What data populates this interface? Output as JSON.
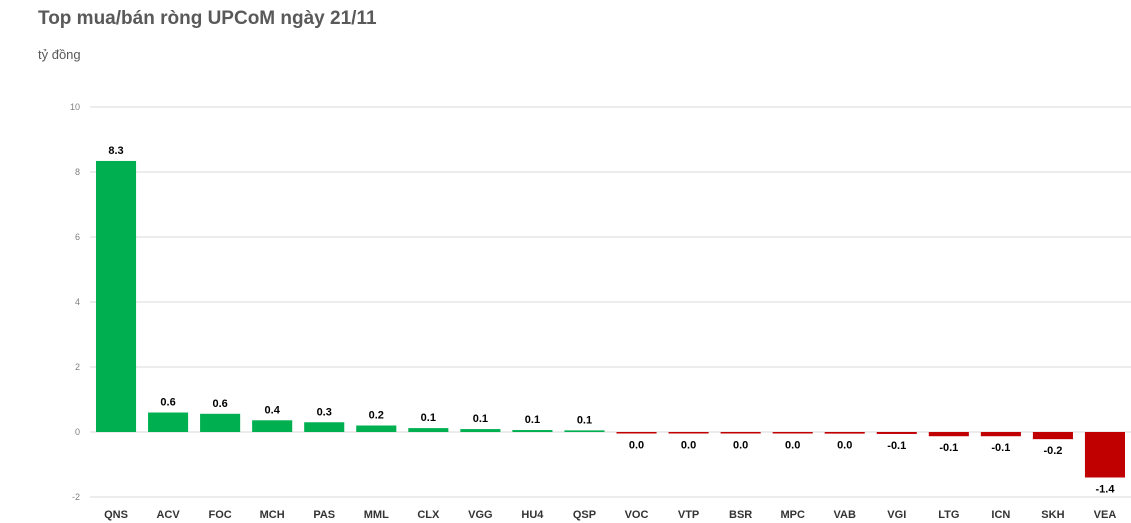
{
  "chart_data": {
    "type": "bar",
    "title": "Top mua/bán ròng UPCoM ngày 21/11",
    "unit_label": "tỷ đồng",
    "categories": [
      "QNS",
      "ACV",
      "FOC",
      "MCH",
      "PAS",
      "MML",
      "CLX",
      "VGG",
      "HU4",
      "QSP",
      "VOC",
      "VTP",
      "BSR",
      "MPC",
      "VAB",
      "VGI",
      "LTG",
      "ICN",
      "SKH",
      "VEA"
    ],
    "values": [
      8.34,
      0.6,
      0.56,
      0.36,
      0.3,
      0.2,
      0.12,
      0.09,
      0.06,
      0.05,
      -0.03,
      -0.03,
      -0.04,
      -0.04,
      -0.05,
      -0.06,
      -0.13,
      -0.13,
      -0.22,
      -1.4
    ],
    "data_labels": [
      "8.3",
      "0.6",
      "0.6",
      "0.4",
      "0.3",
      "0.2",
      "0.1",
      "0.1",
      "0.1",
      "0.1",
      "0.0",
      "0.0",
      "0.0",
      "0.0",
      "0.0",
      "-0.1",
      "-0.1",
      "-0.1",
      "-0.2",
      "-1.4"
    ],
    "ylim": [
      -2,
      10
    ],
    "yticks": [
      -2,
      0,
      2,
      4,
      6,
      8,
      10
    ],
    "ytick_labels": [
      "-2",
      "0",
      "2",
      "4",
      "6",
      "8",
      "10"
    ],
    "grid": true,
    "legend": "none",
    "colors": {
      "positive": "#00b050",
      "negative": "#c00000",
      "grid": "#d9d9d9",
      "title": "#595959"
    }
  }
}
